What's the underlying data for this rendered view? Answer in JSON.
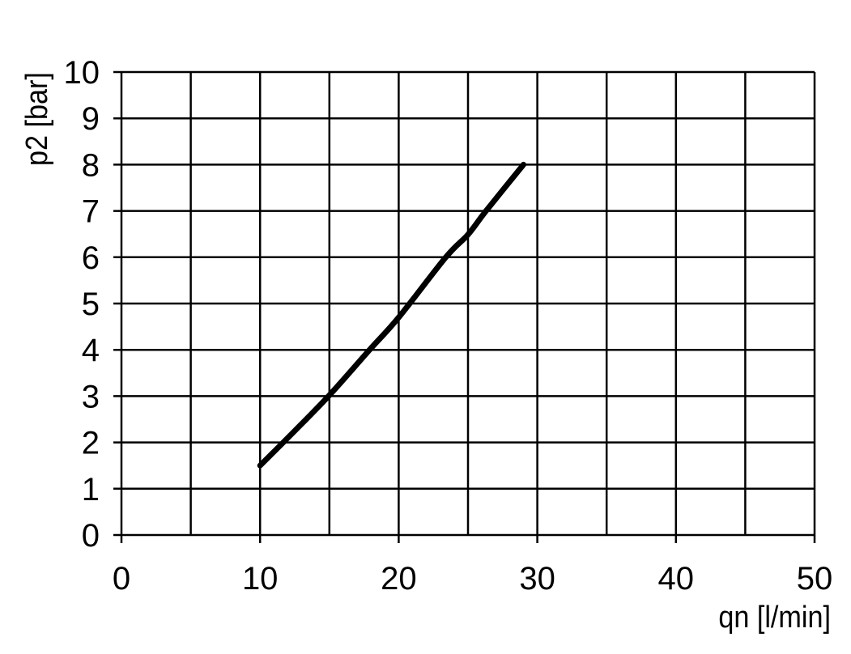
{
  "chart_data": {
    "type": "line",
    "title": "",
    "xlabel": "qn [l/min]",
    "ylabel": "p2 [bar]",
    "xlim": [
      0,
      50
    ],
    "ylim": [
      0,
      10
    ],
    "x_ticks": [
      0,
      10,
      20,
      30,
      40,
      50
    ],
    "y_ticks": [
      0,
      1,
      2,
      3,
      4,
      5,
      6,
      7,
      8,
      9,
      10
    ],
    "x_gridlines": [
      0,
      5,
      10,
      15,
      20,
      25,
      30,
      35,
      40,
      45,
      50
    ],
    "y_gridlines": [
      0,
      1,
      2,
      3,
      4,
      5,
      6,
      7,
      8,
      9,
      10
    ],
    "grid": true,
    "colors": {
      "line": "#000000",
      "grid": "#000000",
      "background": "#ffffff"
    },
    "series": [
      {
        "x": [
          10,
          12.5,
          15,
          17.9,
          20,
          23.4,
          25,
          26.3,
          29
        ],
        "y": [
          1.5,
          2.25,
          3.02,
          4.0,
          4.7,
          6.0,
          6.49,
          7.0,
          8.0
        ]
      }
    ]
  }
}
